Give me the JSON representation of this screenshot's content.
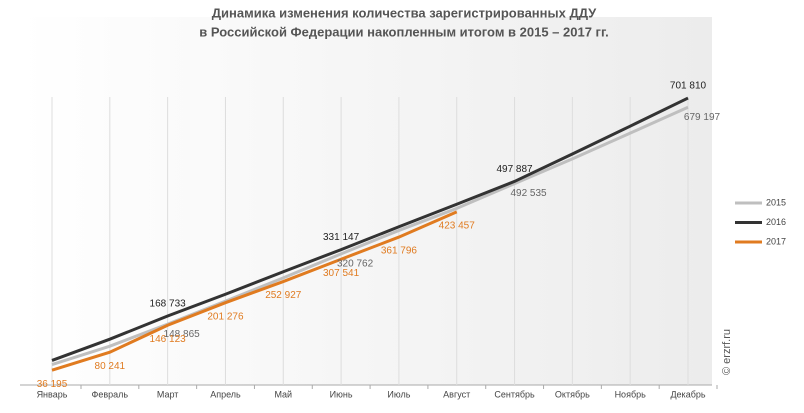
{
  "chart_data": {
    "type": "line",
    "title": [
      "Динамика изменения количества зарегистрированных ДДУ",
      "в Российской Федерации накопленным итогом в 2015 – 2017 гг."
    ],
    "categories": [
      "Январь",
      "Февраль",
      "Март",
      "Апрель",
      "Май",
      "Июнь",
      "Июль",
      "Август",
      "Сентябрь",
      "Октябрь",
      "Ноябрь",
      "Декабрь"
    ],
    "series": [
      {
        "name": "2015",
        "color": "#bfbfbf",
        "values": [
          50000,
          95000,
          148865,
          205000,
          262000,
          320762,
          378000,
          432000,
          492535,
          553000,
          616000,
          679197
        ],
        "value_labels": [
          null,
          null,
          "148 865",
          null,
          null,
          "320 762",
          null,
          null,
          "492 535",
          null,
          null,
          "679 197"
        ]
      },
      {
        "name": "2016",
        "color": "#333333",
        "values": [
          60000,
          112000,
          168733,
          222000,
          277000,
          331147,
          387000,
          442000,
          497887,
          565000,
          633000,
          701810
        ],
        "value_labels": [
          null,
          null,
          "168 733",
          null,
          null,
          "331 147",
          null,
          null,
          "497 887",
          null,
          null,
          "701 810"
        ]
      },
      {
        "name": "2017",
        "color": "#e07b20",
        "values": [
          36195,
          80241,
          146123,
          201276,
          252927,
          307541,
          361796,
          423457,
          null,
          null,
          null,
          null
        ],
        "value_labels": [
          "36 195",
          "80 241",
          "146 123",
          "201 276",
          "252 927",
          "307 541",
          "361 796",
          "423 457",
          null,
          null,
          null,
          null
        ]
      }
    ],
    "ylim": [
      0,
      900000
    ],
    "legend": "right",
    "watermark": "© erzrf.ru"
  }
}
